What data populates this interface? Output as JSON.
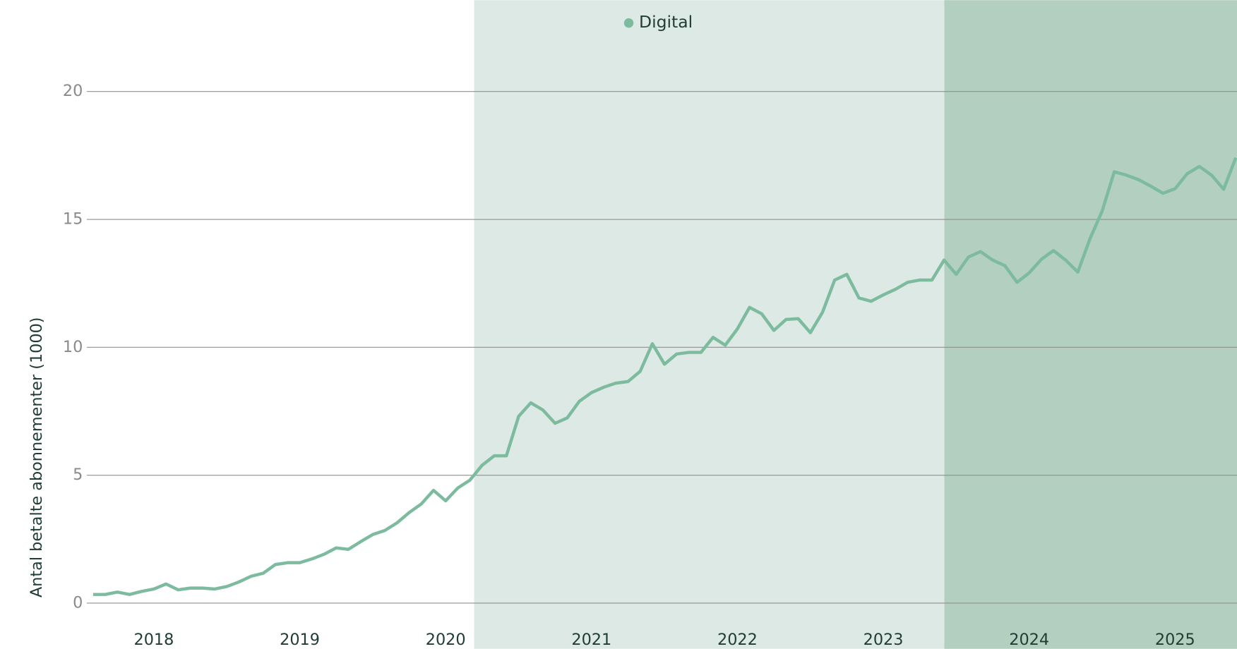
{
  "chart_data": {
    "type": "line",
    "ylabel": "Antal betalte abonnementer (1000)",
    "categories": [
      null,
      null,
      null,
      null,
      null,
      "2018",
      null,
      null,
      null,
      null,
      null,
      null,
      null,
      null,
      null,
      null,
      null,
      "2019",
      null,
      null,
      null,
      null,
      null,
      null,
      null,
      null,
      null,
      null,
      null,
      "2020",
      null,
      null,
      null,
      null,
      null,
      null,
      null,
      null,
      null,
      null,
      null,
      "2021",
      null,
      null,
      null,
      null,
      null,
      null,
      null,
      null,
      null,
      null,
      null,
      "2022",
      null,
      null,
      null,
      null,
      null,
      null,
      null,
      null,
      null,
      null,
      null,
      "2023",
      null,
      null,
      null,
      null,
      null,
      null,
      null,
      null,
      null,
      null,
      null,
      "2024",
      null,
      null,
      null,
      null,
      null,
      null,
      null,
      null,
      null,
      null,
      null,
      "2025",
      null,
      null,
      null,
      null,
      null
    ],
    "series": [
      {
        "name": "Digital",
        "color": "#7dbb9f",
        "values": [
          0.34,
          0.34,
          0.43,
          0.34,
          0.46,
          0.55,
          0.75,
          0.52,
          0.59,
          0.59,
          0.55,
          0.65,
          0.83,
          1.05,
          1.17,
          1.51,
          1.58,
          1.58,
          1.73,
          1.91,
          2.16,
          2.1,
          2.4,
          2.68,
          2.84,
          3.14,
          3.54,
          3.88,
          4.41,
          4.0,
          4.5,
          4.81,
          5.39,
          5.76,
          5.76,
          7.3,
          7.83,
          7.55,
          7.03,
          7.24,
          7.89,
          8.23,
          8.44,
          8.6,
          8.66,
          9.06,
          10.14,
          9.34,
          9.74,
          9.8,
          9.8,
          10.39,
          10.08,
          10.72,
          11.56,
          11.31,
          10.66,
          11.09,
          11.12,
          10.57,
          11.37,
          12.63,
          12.85,
          11.93,
          11.8,
          12.05,
          12.27,
          12.54,
          12.63,
          12.63,
          13.41,
          12.85,
          13.53,
          13.74,
          13.41,
          13.19,
          12.54,
          12.91,
          13.44,
          13.78,
          13.41,
          12.94,
          14.24,
          15.32,
          16.86,
          16.73,
          16.55,
          16.3,
          16.02,
          16.2,
          16.79,
          17.07,
          16.73,
          16.18,
          17.41
        ]
      }
    ],
    "ylim": [
      0,
      23.57
    ],
    "yticks": [
      0,
      5,
      10,
      15,
      20
    ],
    "grid": true
  }
}
